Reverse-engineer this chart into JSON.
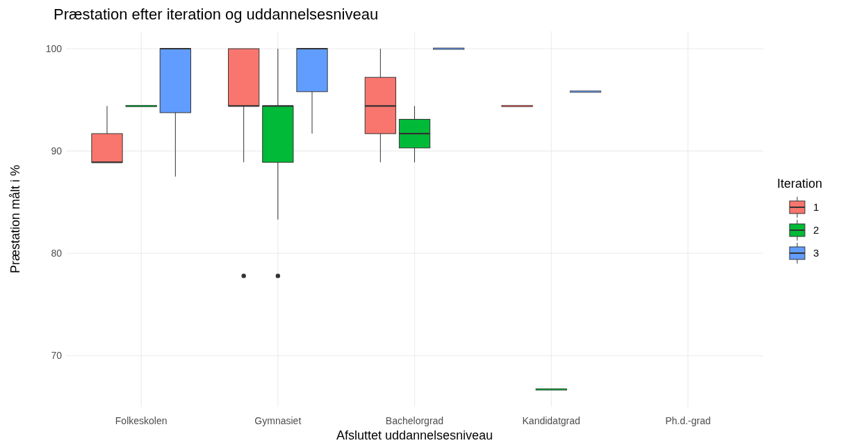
{
  "chart_data": {
    "type": "box",
    "title": "Præstation efter iteration og uddannelsesniveau",
    "xlabel": "Afsluttet uddannelsesniveau",
    "ylabel": "Præstation målt i %",
    "legend_title": "Iteration",
    "categories": [
      "Folkeskolen",
      "Gymnasiet",
      "Bachelorgrad",
      "Kandidatgrad",
      "Ph.d.-grad"
    ],
    "ylim": [
      65.0,
      101.7
    ],
    "yticks": [
      70,
      80,
      90,
      100
    ],
    "grid": true,
    "legend": "right",
    "series": [
      {
        "name": "1",
        "color": "#f8766d",
        "boxes": [
          {
            "low": 88.9,
            "q1": 88.9,
            "median": 88.9,
            "q3": 91.7,
            "high": 94.4
          },
          {
            "low": 88.9,
            "q1": 94.4,
            "median": 94.4,
            "q3": 100,
            "high": 100,
            "outliers": [
              77.8
            ]
          },
          {
            "low": 88.9,
            "q1": 91.7,
            "median": 94.4,
            "q3": 97.2,
            "high": 100
          },
          {
            "low": 94.4,
            "q1": 94.4,
            "median": 94.4,
            "q3": 94.4,
            "high": 94.4
          },
          null
        ]
      },
      {
        "name": "2",
        "color": "#00ba38",
        "boxes": [
          {
            "low": 94.4,
            "q1": 94.4,
            "median": 94.4,
            "q3": 94.4,
            "high": 94.4
          },
          {
            "low": 83.3,
            "q1": 88.9,
            "median": 94.4,
            "q3": 94.4,
            "high": 100,
            "outliers": [
              77.8
            ]
          },
          {
            "low": 88.9,
            "q1": 90.3,
            "median": 91.7,
            "q3": 93.1,
            "high": 94.4
          },
          {
            "low": 66.7,
            "q1": 66.7,
            "median": 66.7,
            "q3": 66.7,
            "high": 66.7
          },
          null
        ]
      },
      {
        "name": "3",
        "color": "#619cff",
        "boxes": [
          {
            "low": 87.5,
            "q1": 93.75,
            "median": 100,
            "q3": 100,
            "high": 100
          },
          {
            "low": 91.7,
            "q1": 95.8,
            "median": 100,
            "q3": 100,
            "high": 100
          },
          {
            "low": 100,
            "q1": 100,
            "median": 100,
            "q3": 100,
            "high": 100
          },
          {
            "low": 95.8,
            "q1": 95.8,
            "median": 95.8,
            "q3": 95.8,
            "high": 95.8
          },
          null
        ]
      }
    ]
  }
}
